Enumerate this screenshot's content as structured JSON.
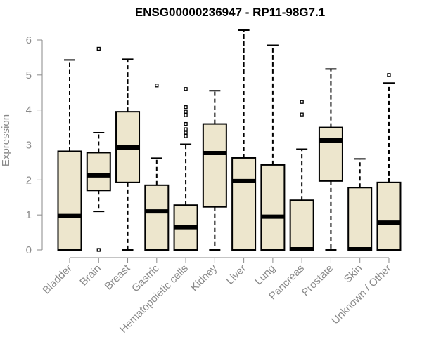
{
  "chart_data": {
    "type": "boxplot",
    "title": "ENSG00000236947 - RP11-98G7.1",
    "xlabel": "",
    "ylabel": "Expression",
    "ylim": [
      0,
      6.3
    ],
    "yticks": [
      0,
      1,
      2,
      3,
      4,
      5,
      6
    ],
    "grid": false,
    "box_color": "#ede6cd",
    "stroke_color": "#000000",
    "label_color": "#8a8a8a",
    "categories": [
      "Bladder",
      "Brain",
      "Breast",
      "Gastric",
      "Hematopoietic cells",
      "Kidney",
      "Liver",
      "Lung",
      "Pancreas",
      "Prostate",
      "Skin",
      "Unknown / Other"
    ],
    "boxes": [
      {
        "min": 0,
        "q1": 0,
        "median": 0.97,
        "q3": 2.82,
        "max": 5.43,
        "outliers": []
      },
      {
        "min": 1.1,
        "q1": 1.7,
        "median": 2.13,
        "q3": 2.78,
        "max": 3.35,
        "outliers": [
          5.75,
          0
        ]
      },
      {
        "min": 0,
        "q1": 1.93,
        "median": 2.93,
        "q3": 3.95,
        "max": 5.45,
        "outliers": []
      },
      {
        "min": 0,
        "q1": 0,
        "median": 1.1,
        "q3": 1.85,
        "max": 2.62,
        "outliers": [
          4.7
        ]
      },
      {
        "min": 0,
        "q1": 0,
        "median": 0.65,
        "q3": 1.28,
        "max": 3.02,
        "outliers": [
          3.25,
          3.35,
          3.45,
          3.6,
          3.85,
          3.95,
          4.08,
          4.6
        ]
      },
      {
        "min": 0,
        "q1": 1.23,
        "median": 2.77,
        "q3": 3.6,
        "max": 4.55,
        "outliers": []
      },
      {
        "min": 0,
        "q1": 0,
        "median": 1.97,
        "q3": 2.63,
        "max": 6.28,
        "outliers": []
      },
      {
        "min": 0,
        "q1": 0,
        "median": 0.95,
        "q3": 2.43,
        "max": 5.85,
        "outliers": []
      },
      {
        "min": 0,
        "q1": 0,
        "median": 0.02,
        "q3": 1.42,
        "max": 2.88,
        "outliers": [
          3.87,
          4.23
        ]
      },
      {
        "min": 0,
        "q1": 1.97,
        "median": 3.13,
        "q3": 3.5,
        "max": 5.17,
        "outliers": []
      },
      {
        "min": 0,
        "q1": 0,
        "median": 0.02,
        "q3": 1.78,
        "max": 2.6,
        "outliers": []
      },
      {
        "min": 0,
        "q1": 0,
        "median": 0.78,
        "q3": 1.93,
        "max": 4.77,
        "outliers": [
          5.0
        ]
      }
    ]
  }
}
